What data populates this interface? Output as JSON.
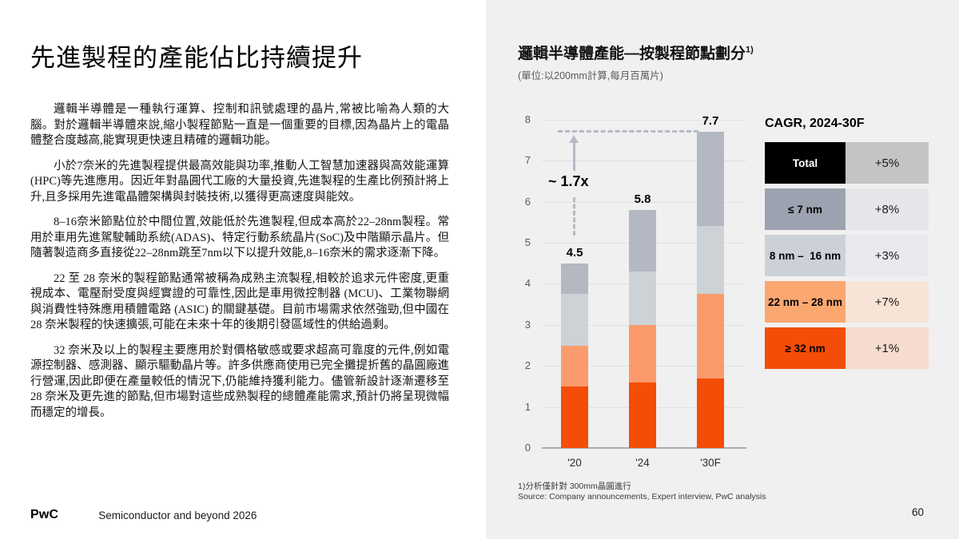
{
  "slide": {
    "title": "先進製程的產能佔比持續提升",
    "paragraphs": [
      "邏輯半導體是一種執行運算、控制和訊號處理的晶片,常被比喻為人類的大腦。對於邏輯半導體來說,縮小製程節點一直是一個重要的目標,因為晶片上的電晶體整合度越高,能實現更快速且精確的邏輯功能。",
      "小於7奈米的先進製程提供最高效能與功率,推動人工智慧加速器與高效能運算(HPC)等先進應用。因近年對晶圓代工廠的大量投資,先進製程的生產比例預計將上升,且多採用先進電晶體架構與封裝技術,以獲得更高速度與能效。",
      "8–16奈米節點位於中間位置,效能低於先進製程,但成本高於22–28nm製程。常用於車用先進駕駛輔助系統(ADAS)、特定行動系統晶片(SoC)及中階顯示晶片。但隨著製造商多直接從22–28nm跳至7nm以下以提升效能,8–16奈米的需求逐漸下降。",
      "22 至 28 奈米的製程節點通常被稱為成熟主流製程,相較於追求元件密度,更重視成本、電壓耐受度與經實證的可靠性,因此是車用微控制器 (MCU)、工業物聯網與消費性特殊應用積體電路 (ASIC) 的關鍵基礎。目前市場需求依然強勁,但中國在 28 奈米製程的快速擴張,可能在未來十年的後期引發區域性的供給過剩。",
      "32 奈米及以上的製程主要應用於對價格敏感或要求超高可靠度的元件,例如電源控制器、感測器、顯示驅動晶片等。許多供應商使用已完全攤提折舊的晶圓廠進行營運,因此即便在產量較低的情況下,仍能維持獲利能力。儘管新設計逐漸遷移至 28 奈米及更先進的節點,但市場對這些成熟製程的總體產能需求,預計仍將呈現微幅而穩定的增長。"
    ],
    "footer": {
      "brand": "PwC",
      "report": "Semiconductor and beyond 2026",
      "page": "60"
    }
  },
  "panel": {
    "chart_title": "邏輯半導體產能—按製程節點劃分",
    "chart_title_sup": "1)",
    "chart_subtitle": "(單位:以200mm計算,每月百萬片)",
    "footnote": "1)分析僅針對 300mm晶圓進行",
    "source": "Source: Company announcements, Expert interview, PwC analysis",
    "background": "#f0f0f1"
  },
  "chart_data": {
    "type": "bar",
    "stacked": true,
    "title": "邏輯半導體產能—按製程節點劃分",
    "unit_note": "以200mm計算,每月百萬片",
    "categories": [
      "'20",
      "'24",
      "'30F"
    ],
    "series": [
      {
        "name": "≥ 32 nm",
        "color": "#f34d07",
        "values": [
          1.5,
          1.6,
          1.7
        ]
      },
      {
        "name": "22 nm – 28 nm",
        "color": "#fb9b6c",
        "values": [
          1.0,
          1.4,
          2.05
        ]
      },
      {
        "name": "8 nm – 16 nm",
        "color": "#cdd2d7",
        "values": [
          1.25,
          1.3,
          1.65
        ]
      },
      {
        "name": "≤ 7 nm",
        "color": "#b3b8c2",
        "values": [
          0.75,
          1.5,
          2.3
        ]
      }
    ],
    "totals": [
      4.5,
      5.8,
      7.7
    ],
    "ylim": [
      0,
      8
    ],
    "yticks": [
      0,
      1,
      2,
      3,
      4,
      5,
      6,
      7,
      8
    ],
    "grid": true,
    "legend_position": "none",
    "annotation": {
      "text": "~ 1.7x",
      "dashed_level": 7.7
    }
  },
  "cagr_table": {
    "title": "CAGR, 2024-30F",
    "rows": [
      {
        "label": "Total",
        "value": "+5%",
        "label_bg": "#000000",
        "label_color": "#ffffff",
        "value_bg": "#c4c4c7"
      },
      {
        "label": "≤ 7 nm",
        "value": "+8%",
        "label_bg": "#9ca2af",
        "label_color": "#000000",
        "value_bg": "#e4e6e9"
      },
      {
        "label": "8 nm –  16 nm",
        "value": "+3%",
        "label_bg": "#cbd1d7",
        "label_color": "#000000",
        "value_bg": "#e8eaed"
      },
      {
        "label": "22 nm – 28 nm",
        "value": "+7%",
        "label_bg": "#fba770",
        "label_color": "#000000",
        "value_bg": "#f8e4d6"
      },
      {
        "label": "≥ 32 nm",
        "value": "+1%",
        "label_bg": "#f34d07",
        "label_color": "#000000",
        "value_bg": "#f6dcce"
      }
    ]
  }
}
